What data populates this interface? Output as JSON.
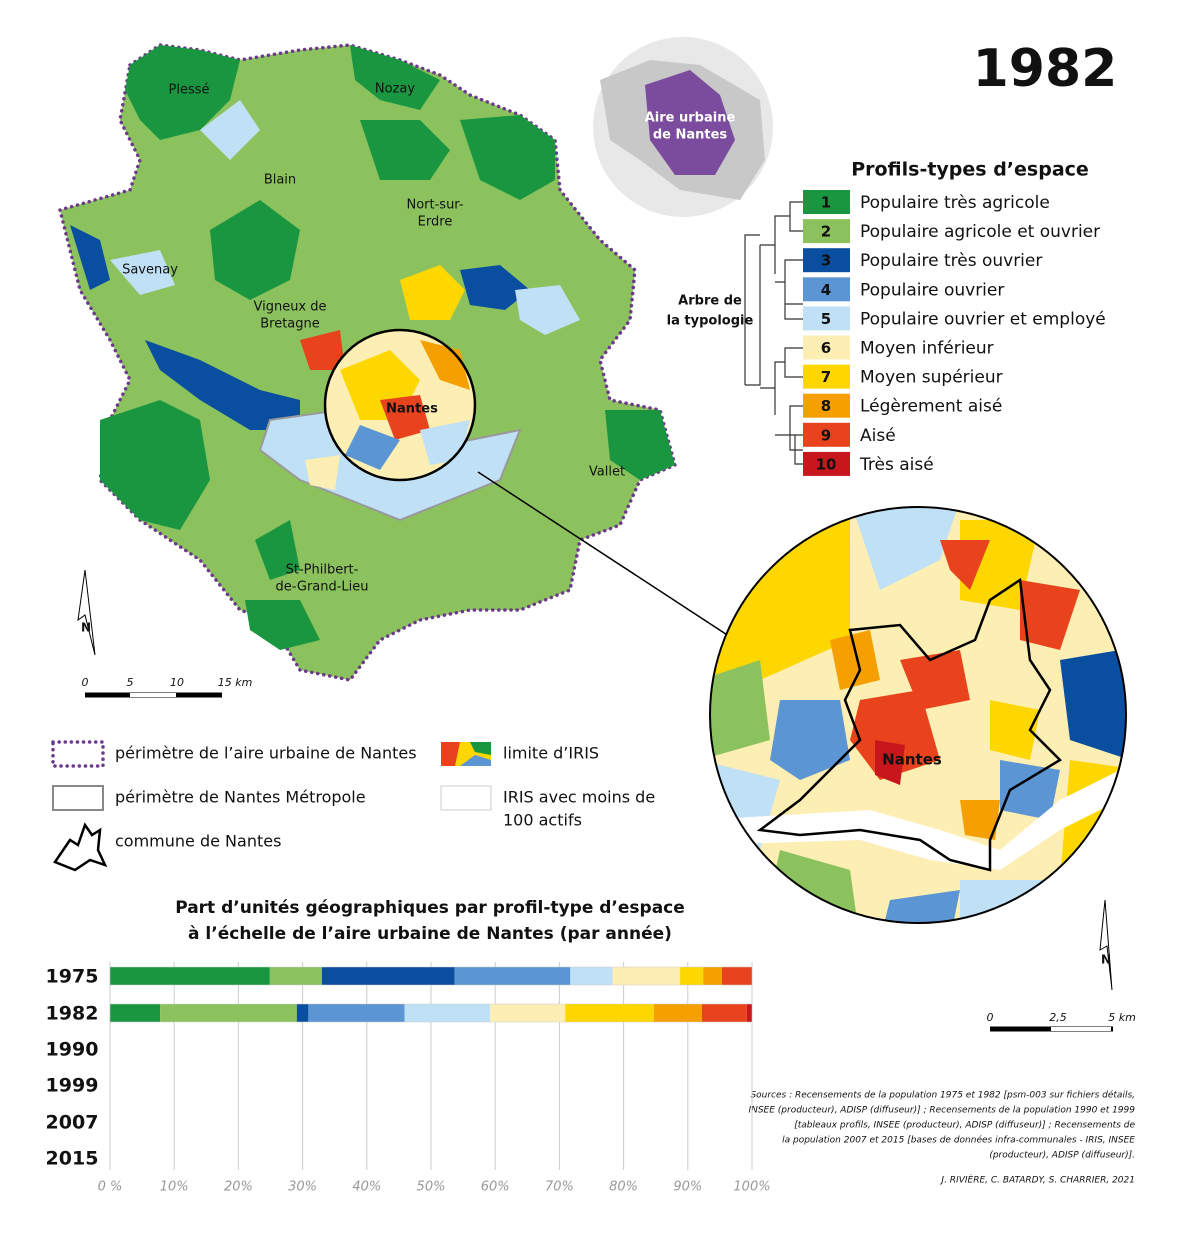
{
  "title": "1982",
  "inset_label": [
    "Aire urbaine",
    "de Nantes"
  ],
  "place_labels": [
    [
      "Plessé"
    ],
    [
      "Nozay"
    ],
    [
      "Blain"
    ],
    [
      "Nort-sur-",
      "Erdre"
    ],
    [
      "Savenay"
    ],
    [
      "Vigneux de",
      "Bretagne"
    ],
    [
      "Nantes"
    ],
    [
      "Vallet"
    ],
    [
      "St-Philbert-",
      "de-Grand-Lieu"
    ]
  ],
  "zoom_label": "Nantes",
  "north": "N",
  "scale_main": [
    "0",
    "5",
    "10",
    "15 km"
  ],
  "scale_zoom": [
    "0",
    "2,5",
    "5 km"
  ],
  "legend": {
    "title": "Profils-types d’espace",
    "tree_label": [
      "Arbre de",
      "la typologie"
    ],
    "items": [
      {
        "number": "1",
        "label": "Populaire très agricole",
        "color": "#1a9641"
      },
      {
        "number": "2",
        "label": "Populaire agricole et ouvrier",
        "color": "#8cc25e"
      },
      {
        "number": "3",
        "label": "Populaire très ouvrier",
        "color": "#0a4ea0"
      },
      {
        "number": "4",
        "label": "Populaire ouvrier",
        "color": "#5b95d3"
      },
      {
        "number": "5",
        "label": "Populaire ouvrier et employé",
        "color": "#bfe0f5"
      },
      {
        "number": "6",
        "label": "Moyen inférieur",
        "color": "#fdeeb3"
      },
      {
        "number": "7",
        "label": "Moyen supérieur",
        "color": "#ffd700"
      },
      {
        "number": "8",
        "label": "Légèrement aisé",
        "color": "#f5a000"
      },
      {
        "number": "9",
        "label": "Aisé",
        "color": "#e8431c"
      },
      {
        "number": "10",
        "label": "Très aisé",
        "color": "#c8161d"
      }
    ]
  },
  "map_legend": {
    "perimeter_aire": "périmètre de l’aire urbaine de Nantes",
    "perimeter_metropole": "périmètre de Nantes Métropole",
    "commune": "commune de Nantes",
    "iris_limit": "limite d’IRIS",
    "iris_small": [
      "IRIS avec moins de",
      "100 actifs"
    ]
  },
  "chart_data": {
    "type": "stacked-bar",
    "title": [
      "Part d’unités géographiques par profil-type d’espace",
      "à l’échelle de l’aire urbaine de Nantes (par année)"
    ],
    "categories": [
      "1975",
      "1982",
      "1990",
      "1999",
      "2007",
      "2015"
    ],
    "series": [
      {
        "name": "1",
        "color": "#1a9641",
        "values": [
          24.9,
          7.8,
          null,
          null,
          null,
          null
        ]
      },
      {
        "name": "2",
        "color": "#8cc25e",
        "values": [
          8.1,
          21.3,
          null,
          null,
          null,
          null
        ]
      },
      {
        "name": "3",
        "color": "#0a4ea0",
        "values": [
          20.7,
          1.8,
          null,
          null,
          null,
          null
        ]
      },
      {
        "name": "4",
        "color": "#5b95d3",
        "values": [
          18.0,
          15.0,
          null,
          null,
          null,
          null
        ]
      },
      {
        "name": "5",
        "color": "#bfe0f5",
        "values": [
          6.6,
          13.3,
          null,
          null,
          null,
          null
        ]
      },
      {
        "name": "6",
        "color": "#fdeeb3",
        "values": [
          10.5,
          11.7,
          null,
          null,
          null,
          null
        ]
      },
      {
        "name": "7",
        "color": "#ffd700",
        "values": [
          3.6,
          13.8,
          null,
          null,
          null,
          null
        ]
      },
      {
        "name": "8",
        "color": "#f5a000",
        "values": [
          2.9,
          7.5,
          null,
          null,
          null,
          null
        ]
      },
      {
        "name": "9",
        "color": "#e8431c",
        "values": [
          4.7,
          7.0,
          null,
          null,
          null,
          null
        ]
      },
      {
        "name": "10",
        "color": "#c8161d",
        "values": [
          0,
          0.8,
          null,
          null,
          null,
          null
        ]
      }
    ],
    "xlim": [
      0,
      100
    ],
    "xticks": [
      {
        "value": 0,
        "label": "0 %"
      },
      {
        "value": 10,
        "label": "10%"
      },
      {
        "value": 20,
        "label": "20%"
      },
      {
        "value": 30,
        "label": "30%"
      },
      {
        "value": 40,
        "label": "40%"
      },
      {
        "value": 50,
        "label": "50%"
      },
      {
        "value": 60,
        "label": "60%"
      },
      {
        "value": 70,
        "label": "70%"
      },
      {
        "value": 80,
        "label": "80%"
      },
      {
        "value": 90,
        "label": "90%"
      },
      {
        "value": 100,
        "label": "100%"
      }
    ],
    "grid": true
  },
  "sources": [
    "Sources : Recensements de la population 1975 et 1982 [psm-003 sur fichiers détails,",
    "INSEE (producteur), ADISP (diffuseur)] ; Recensements de la population 1990 et 1999",
    "[tableaux profils, INSEE (producteur), ADISP (diffuseur)] ; Recensements de",
    "la population 2007 et 2015 [bases de données infra-communales - IRIS, INSEE",
    "(producteur), ADISP (diffuseur)]."
  ],
  "authors": "J. RIVIÈRE, C. BATARDY, S. CHARRIER, 2021"
}
